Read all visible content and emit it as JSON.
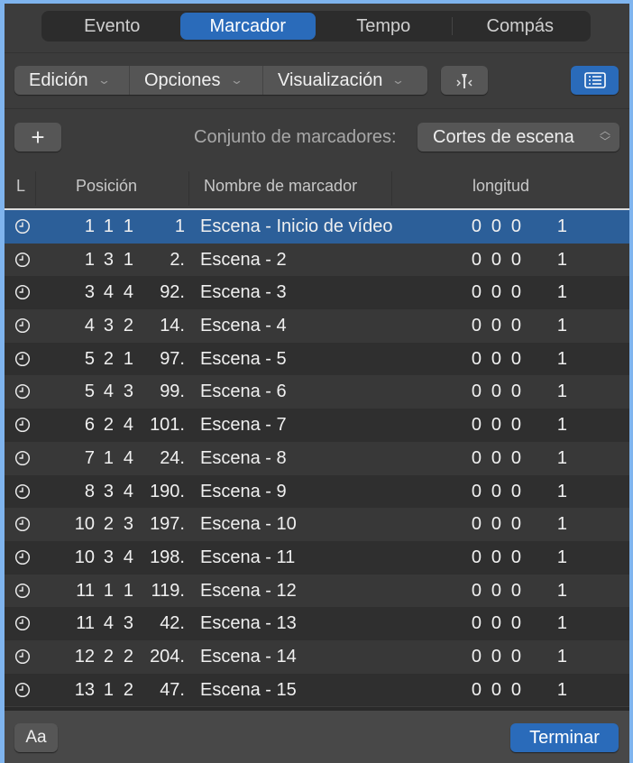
{
  "tabs": [
    {
      "label": "Evento"
    },
    {
      "label": "Marcador",
      "active": true
    },
    {
      "label": "Tempo"
    },
    {
      "label": "Compás"
    }
  ],
  "toolbar": {
    "menus": [
      {
        "label": "Edición"
      },
      {
        "label": "Opciones"
      },
      {
        "label": "Visualización"
      }
    ],
    "snap_icon": "marker-snap-icon",
    "list_icon": "list-view-icon"
  },
  "set_row": {
    "add_label": "+",
    "set_label": "Conjunto de marcadores:",
    "set_value": "Cortes de escena"
  },
  "columns": {
    "lock": "L",
    "position": "Posición",
    "name": "Nombre de marcador",
    "length": "longitud"
  },
  "markers": [
    {
      "pos": [
        "1",
        "1",
        "1",
        "1"
      ],
      "name": "Escena - Inicio de vídeo",
      "len": [
        "0",
        "0",
        "0",
        "1"
      ],
      "selected": true
    },
    {
      "pos": [
        "1",
        "3",
        "1",
        "2."
      ],
      "name": "Escena - 2",
      "len": [
        "0",
        "0",
        "0",
        "1"
      ]
    },
    {
      "pos": [
        "3",
        "4",
        "4",
        "92."
      ],
      "name": "Escena - 3",
      "len": [
        "0",
        "0",
        "0",
        "1"
      ]
    },
    {
      "pos": [
        "4",
        "3",
        "2",
        "14."
      ],
      "name": "Escena - 4",
      "len": [
        "0",
        "0",
        "0",
        "1"
      ]
    },
    {
      "pos": [
        "5",
        "2",
        "1",
        "97."
      ],
      "name": "Escena - 5",
      "len": [
        "0",
        "0",
        "0",
        "1"
      ]
    },
    {
      "pos": [
        "5",
        "4",
        "3",
        "99."
      ],
      "name": "Escena - 6",
      "len": [
        "0",
        "0",
        "0",
        "1"
      ]
    },
    {
      "pos": [
        "6",
        "2",
        "4",
        "101."
      ],
      "name": "Escena - 7",
      "len": [
        "0",
        "0",
        "0",
        "1"
      ]
    },
    {
      "pos": [
        "7",
        "1",
        "4",
        "24."
      ],
      "name": "Escena - 8",
      "len": [
        "0",
        "0",
        "0",
        "1"
      ]
    },
    {
      "pos": [
        "8",
        "3",
        "4",
        "190."
      ],
      "name": "Escena - 9",
      "len": [
        "0",
        "0",
        "0",
        "1"
      ]
    },
    {
      "pos": [
        "10",
        "2",
        "3",
        "197."
      ],
      "name": "Escena - 10",
      "len": [
        "0",
        "0",
        "0",
        "1"
      ]
    },
    {
      "pos": [
        "10",
        "3",
        "4",
        "198."
      ],
      "name": "Escena - 11",
      "len": [
        "0",
        "0",
        "0",
        "1"
      ]
    },
    {
      "pos": [
        "11",
        "1",
        "1",
        "119."
      ],
      "name": "Escena - 12",
      "len": [
        "0",
        "0",
        "0",
        "1"
      ]
    },
    {
      "pos": [
        "11",
        "4",
        "3",
        "42."
      ],
      "name": "Escena - 13",
      "len": [
        "0",
        "0",
        "0",
        "1"
      ]
    },
    {
      "pos": [
        "12",
        "2",
        "2",
        "204."
      ],
      "name": "Escena - 14",
      "len": [
        "0",
        "0",
        "0",
        "1"
      ]
    },
    {
      "pos": [
        "13",
        "1",
        "2",
        "47."
      ],
      "name": "Escena - 15",
      "len": [
        "0",
        "0",
        "0",
        "1"
      ]
    }
  ],
  "footer": {
    "font_label": "Aa",
    "done_label": "Terminar"
  },
  "colors": {
    "accent": "#2a6bba",
    "frame": "#7fb4ee"
  }
}
